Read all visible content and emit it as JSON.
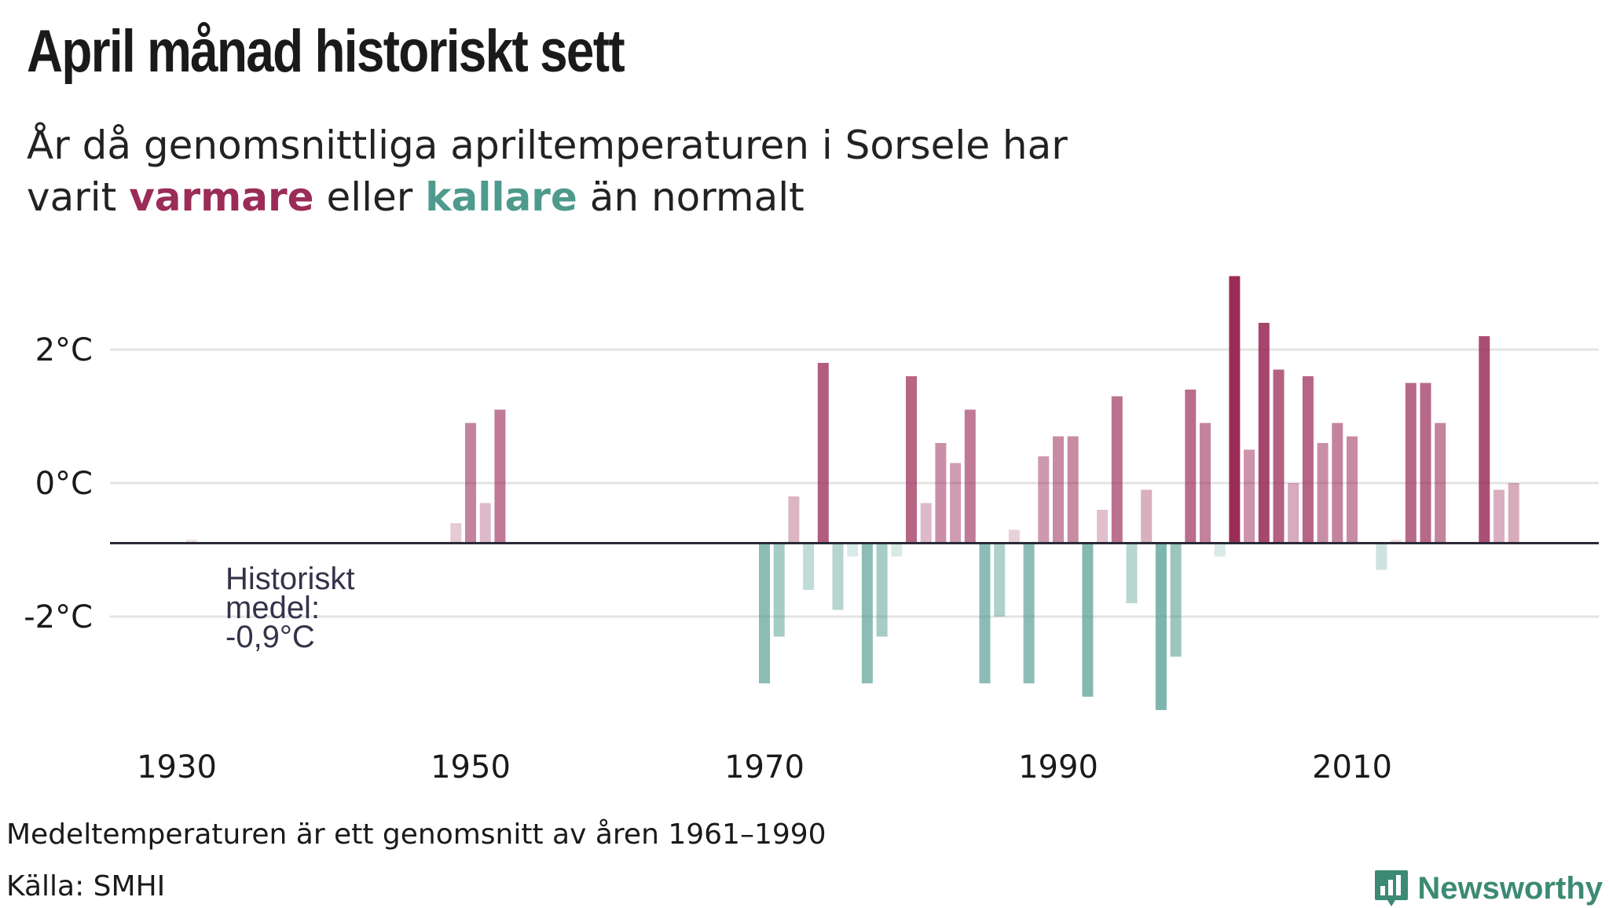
{
  "header": {
    "title": "April månad historiskt sett",
    "subtitle_part1": "År då genomsnittliga apriltemperaturen i Sorsele har varit ",
    "subtitle_warm": "varmare",
    "subtitle_mid": " eller ",
    "subtitle_cold": "kallare",
    "subtitle_end": " än normalt"
  },
  "colors": {
    "warm": "#9b2c58",
    "cold": "#4e9a8d",
    "baseline": "#2a2a3a",
    "grid": "#e3e3e3",
    "brand": "#3c8a73"
  },
  "chart_data": {
    "type": "bar",
    "x_ticks": [
      1930,
      1950,
      1970,
      1990,
      2010
    ],
    "y_ticks": [
      {
        "value": 2,
        "label": "2°C"
      },
      {
        "value": 0,
        "label": "0°C"
      },
      {
        "value": -2,
        "label": "-2°C"
      }
    ],
    "ylim": [
      -3.5,
      3.3
    ],
    "xlim": [
      1925.5,
      2025.5
    ],
    "baseline": -0.9,
    "annotation": [
      "Historiskt",
      "medel:",
      "-0,9°C"
    ],
    "grid": true,
    "values": [
      {
        "year": 1931,
        "temp": -0.85
      },
      {
        "year": 1949,
        "temp": -0.6
      },
      {
        "year": 1950,
        "temp": 0.9
      },
      {
        "year": 1951,
        "temp": -0.3
      },
      {
        "year": 1952,
        "temp": 1.1
      },
      {
        "year": 1970,
        "temp": -3.0
      },
      {
        "year": 1971,
        "temp": -2.3
      },
      {
        "year": 1972,
        "temp": -0.2
      },
      {
        "year": 1973,
        "temp": -1.6
      },
      {
        "year": 1974,
        "temp": 1.8
      },
      {
        "year": 1975,
        "temp": -1.9
      },
      {
        "year": 1976,
        "temp": -1.1
      },
      {
        "year": 1977,
        "temp": -3.0
      },
      {
        "year": 1978,
        "temp": -2.3
      },
      {
        "year": 1979,
        "temp": -1.1
      },
      {
        "year": 1980,
        "temp": 1.6
      },
      {
        "year": 1981,
        "temp": -0.3
      },
      {
        "year": 1982,
        "temp": 0.6
      },
      {
        "year": 1983,
        "temp": 0.3
      },
      {
        "year": 1984,
        "temp": 1.1
      },
      {
        "year": 1985,
        "temp": -3.0
      },
      {
        "year": 1986,
        "temp": -2.0
      },
      {
        "year": 1987,
        "temp": -0.7
      },
      {
        "year": 1988,
        "temp": -3.0
      },
      {
        "year": 1989,
        "temp": 0.4
      },
      {
        "year": 1990,
        "temp": 0.7
      },
      {
        "year": 1991,
        "temp": 0.7
      },
      {
        "year": 1992,
        "temp": -3.2
      },
      {
        "year": 1993,
        "temp": -0.4
      },
      {
        "year": 1994,
        "temp": 1.3
      },
      {
        "year": 1995,
        "temp": -1.8
      },
      {
        "year": 1996,
        "temp": -0.1
      },
      {
        "year": 1997,
        "temp": -3.4
      },
      {
        "year": 1998,
        "temp": -2.6
      },
      {
        "year": 1999,
        "temp": 1.4
      },
      {
        "year": 2000,
        "temp": 0.9
      },
      {
        "year": 2001,
        "temp": -1.1
      },
      {
        "year": 2002,
        "temp": 3.1
      },
      {
        "year": 2003,
        "temp": 0.5
      },
      {
        "year": 2004,
        "temp": 2.4
      },
      {
        "year": 2005,
        "temp": 1.7
      },
      {
        "year": 2006,
        "temp": 0.0
      },
      {
        "year": 2007,
        "temp": 1.6
      },
      {
        "year": 2008,
        "temp": 0.6
      },
      {
        "year": 2009,
        "temp": 0.9
      },
      {
        "year": 2010,
        "temp": 0.7
      },
      {
        "year": 2012,
        "temp": -1.3
      },
      {
        "year": 2013,
        "temp": -0.85
      },
      {
        "year": 2014,
        "temp": 1.5
      },
      {
        "year": 2015,
        "temp": 1.5
      },
      {
        "year": 2016,
        "temp": 0.9
      },
      {
        "year": 2019,
        "temp": 2.2
      },
      {
        "year": 2020,
        "temp": -0.1
      },
      {
        "year": 2021,
        "temp": 0.0
      }
    ]
  },
  "footer": {
    "note": "Medeltemperaturen är ett genomsnitt av åren 1961–1990",
    "source": "Källa: SMHI",
    "brand": "Newsworthy",
    "brand_icon": "bar-chart-logo-icon"
  }
}
